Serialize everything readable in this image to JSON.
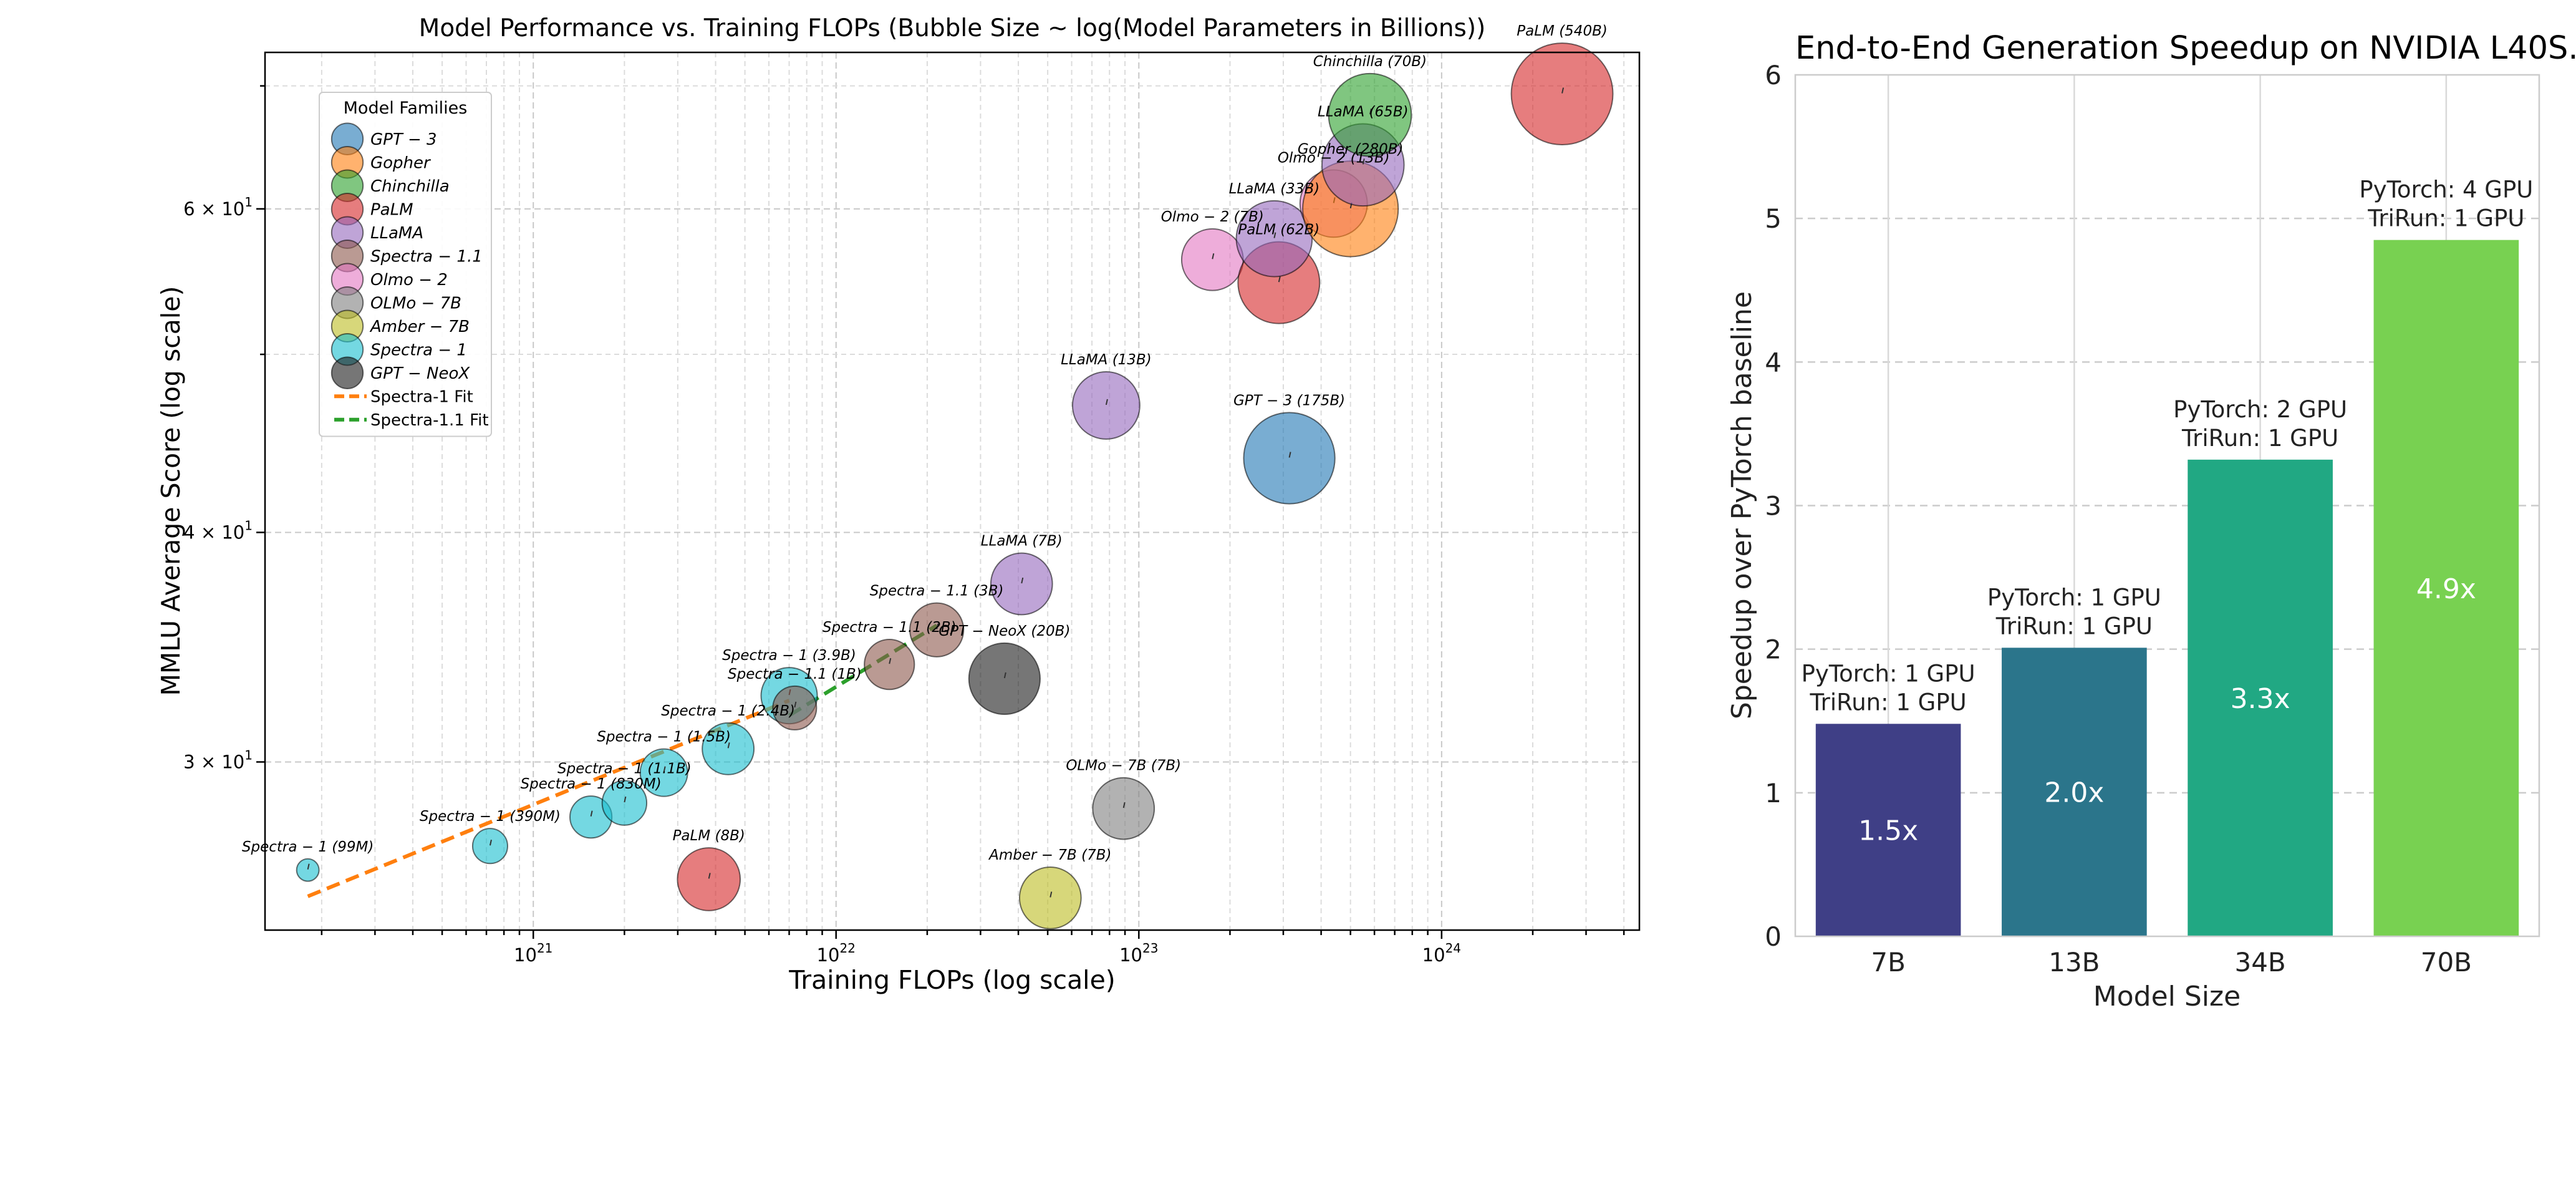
{
  "chart_data": [
    {
      "type": "scatter",
      "title": "Model Performance vs. Training FLOPs (Bubble Size ~ log(Model Parameters in Billions))",
      "xlabel": "Training FLOPs (log scale)",
      "ylabel": "MMLU Average Score (log scale)",
      "xscale": "log",
      "yscale": "log",
      "xlim": [
        1.3e+20,
        4.5e+24
      ],
      "ylim": [
        24.3,
        73.0
      ],
      "x_ticks": [
        {
          "value": 1e+21,
          "base": "10",
          "exp": "21"
        },
        {
          "value": 1e+22,
          "base": "10",
          "exp": "22"
        },
        {
          "value": 1e+23,
          "base": "10",
          "exp": "23"
        },
        {
          "value": 1e+24,
          "base": "10",
          "exp": "24"
        }
      ],
      "y_ticks": [
        {
          "value": 30,
          "base": "3 × 10",
          "exp": "1"
        },
        {
          "value": 40,
          "base": "4 × 10",
          "exp": "1"
        },
        {
          "value": 60,
          "base": "6 × 10",
          "exp": "1"
        }
      ],
      "grid": true,
      "legend": {
        "title": "Model Families",
        "position": "upper-left",
        "entries": [
          {
            "label": "GPT − 3",
            "color": "#1f77b4",
            "kind": "marker"
          },
          {
            "label": "Gopher",
            "color": "#ff7f0e",
            "kind": "marker"
          },
          {
            "label": "Chinchilla",
            "color": "#2ca02c",
            "kind": "marker"
          },
          {
            "label": "PaLM",
            "color": "#d62728",
            "kind": "marker"
          },
          {
            "label": "LLaMA",
            "color": "#9467bd",
            "kind": "marker"
          },
          {
            "label": "Spectra − 1.1",
            "color": "#8c564b",
            "kind": "marker"
          },
          {
            "label": "Olmo − 2",
            "color": "#e377c2",
            "kind": "marker"
          },
          {
            "label": "OLMo − 7B",
            "color": "#7f7f7f",
            "kind": "marker"
          },
          {
            "label": "Amber − 7B",
            "color": "#bcbd22",
            "kind": "marker"
          },
          {
            "label": "Spectra − 1",
            "color": "#17becf",
            "kind": "marker"
          },
          {
            "label": "GPT − NeoX",
            "color": "#1a1a1a",
            "kind": "marker"
          },
          {
            "label": "Spectra-1 Fit",
            "color": "#ff7f0e",
            "kind": "line"
          },
          {
            "label": "Spectra-1.1 Fit",
            "color": "#2ca02c",
            "kind": "line"
          }
        ]
      },
      "points": [
        {
          "label": "Spectra − 1 (99M)",
          "family": "Spectra − 1",
          "flops": 1.8e+20,
          "score": 26.2,
          "params_b": 0.099,
          "color": "#17becf"
        },
        {
          "label": "Spectra − 1 (390M)",
          "family": "Spectra − 1",
          "flops": 7.2e+20,
          "score": 27.0,
          "params_b": 0.39,
          "color": "#17becf"
        },
        {
          "label": "Spectra − 1 (830M)",
          "family": "Spectra − 1",
          "flops": 1.55e+21,
          "score": 28.0,
          "params_b": 0.83,
          "color": "#17becf"
        },
        {
          "label": "Spectra − 1 (1.1B)",
          "family": "Spectra − 1",
          "flops": 2e+21,
          "score": 28.5,
          "params_b": 1.1,
          "color": "#17becf"
        },
        {
          "label": "Spectra − 1 (1.5B)",
          "family": "Spectra − 1",
          "flops": 2.7e+21,
          "score": 29.6,
          "params_b": 1.5,
          "color": "#17becf"
        },
        {
          "label": "Spectra − 1 (2.4B)",
          "family": "Spectra − 1",
          "flops": 4.4e+21,
          "score": 30.5,
          "params_b": 2.4,
          "color": "#17becf"
        },
        {
          "label": "Spectra − 1 (3.9B)",
          "family": "Spectra − 1",
          "flops": 7e+21,
          "score": 32.6,
          "params_b": 3.9,
          "color": "#17becf"
        },
        {
          "label": "Spectra − 1.1 (1B)",
          "family": "Spectra − 1.1",
          "flops": 7.3e+21,
          "score": 32.1,
          "params_b": 1.0,
          "color": "#8c564b"
        },
        {
          "label": "Spectra − 1.1 (2B)",
          "family": "Spectra − 1.1",
          "flops": 1.5e+22,
          "score": 33.9,
          "params_b": 2.0,
          "color": "#8c564b"
        },
        {
          "label": "Spectra − 1.1 (3B)",
          "family": "Spectra − 1.1",
          "flops": 2.15e+22,
          "score": 35.4,
          "params_b": 3.0,
          "color": "#8c564b"
        },
        {
          "label": "GPT − NeoX (20B)",
          "family": "GPT − NeoX",
          "flops": 3.6e+22,
          "score": 33.3,
          "params_b": 20,
          "color": "#1a1a1a"
        },
        {
          "label": "LLaMA (7B)",
          "family": "LLaMA",
          "flops": 4.1e+22,
          "score": 37.5,
          "params_b": 7,
          "color": "#9467bd"
        },
        {
          "label": "PaLM (8B)",
          "family": "PaLM",
          "flops": 3.8e+21,
          "score": 25.9,
          "params_b": 8,
          "color": "#d62728"
        },
        {
          "label": "Amber − 7B (7B)",
          "family": "Amber − 7B",
          "flops": 5.1e+22,
          "score": 25.3,
          "params_b": 7,
          "color": "#bcbd22"
        },
        {
          "label": "OLMo − 7B (7B)",
          "family": "OLMo − 7B",
          "flops": 8.9e+22,
          "score": 28.3,
          "params_b": 7,
          "color": "#7f7f7f"
        },
        {
          "label": "LLaMA (13B)",
          "family": "LLaMA",
          "flops": 7.8e+22,
          "score": 46.9,
          "params_b": 13,
          "color": "#9467bd"
        },
        {
          "label": "GPT − 3 (175B)",
          "family": "GPT − 3",
          "flops": 3.14e+23,
          "score": 43.9,
          "params_b": 175,
          "color": "#1f77b4"
        },
        {
          "label": "Olmo − 2 (7B)",
          "family": "Olmo − 2",
          "flops": 1.75e+23,
          "score": 56.3,
          "params_b": 7,
          "color": "#e377c2"
        },
        {
          "label": "PaLM (62B)",
          "family": "PaLM",
          "flops": 2.9e+23,
          "score": 54.7,
          "params_b": 62,
          "color": "#d62728"
        },
        {
          "label": "LLaMA (33B)",
          "family": "LLaMA",
          "flops": 2.8e+23,
          "score": 57.8,
          "params_b": 33,
          "color": "#9467bd"
        },
        {
          "label": "Olmo − 2 (13B)",
          "family": "Olmo − 2",
          "flops": 4.4e+23,
          "score": 60.4,
          "params_b": 13,
          "color": "#e377c2"
        },
        {
          "label": "Gopher (280B)",
          "family": "Gopher",
          "flops": 5e+23,
          "score": 60.0,
          "params_b": 280,
          "color": "#ff7f0e"
        },
        {
          "label": "LLaMA (65B)",
          "family": "LLaMA",
          "flops": 5.5e+23,
          "score": 63.4,
          "params_b": 65,
          "color": "#9467bd"
        },
        {
          "label": "Chinchilla (70B)",
          "family": "Chinchilla",
          "flops": 5.8e+23,
          "score": 67.5,
          "params_b": 70,
          "color": "#2ca02c"
        },
        {
          "label": "PaLM (540B)",
          "family": "PaLM",
          "flops": 2.5e+24,
          "score": 69.3,
          "params_b": 540,
          "color": "#d62728"
        }
      ],
      "fits": [
        {
          "name": "Spectra-1 Fit",
          "color": "#ff7f0e",
          "x": [
            1.8e+20,
            7e+21
          ],
          "y": [
            25.35,
            32.4
          ]
        },
        {
          "name": "Spectra-1.1 Fit",
          "color": "#2ca02c",
          "x": [
            7e+21,
            2.15e+22
          ],
          "y": [
            31.8,
            35.6
          ]
        }
      ]
    },
    {
      "type": "bar",
      "title": "End-to-End Generation Speedup on NVIDIA L40S.",
      "xlabel": "Model Size",
      "ylabel": "Speedup over PyTorch baseline",
      "categories": [
        "7B",
        "13B",
        "34B",
        "70B"
      ],
      "values": [
        1.48,
        2.01,
        3.32,
        4.85
      ],
      "value_labels": [
        "1.5x",
        "2.0x",
        "3.3x",
        "4.9x"
      ],
      "annotations": [
        [
          "PyTorch: 1 GPU",
          "TriRun: 1 GPU"
        ],
        [
          "PyTorch: 1 GPU",
          "TriRun: 1 GPU"
        ],
        [
          "PyTorch: 2 GPU",
          "TriRun: 1 GPU"
        ],
        [
          "PyTorch: 4 GPU",
          "TriRun: 1 GPU"
        ]
      ],
      "colors": [
        "#3f3f86",
        "#2b758b",
        "#21a883",
        "#78d151"
      ],
      "ylim": [
        0,
        6
      ],
      "y_ticks": [
        "0",
        "1",
        "2",
        "3",
        "4",
        "5",
        "6"
      ],
      "grid": true
    }
  ]
}
